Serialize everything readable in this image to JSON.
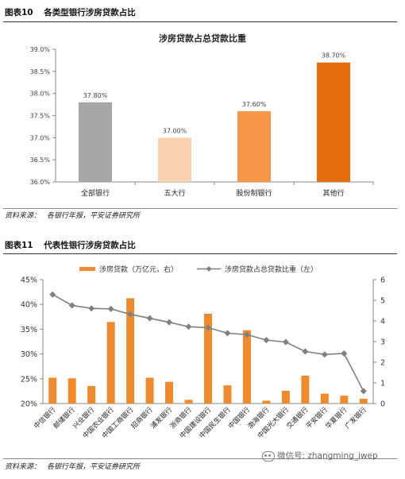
{
  "figure1": {
    "number": "图表10",
    "heading": "各类型银行涉房贷款占比",
    "source_label": "资料来源",
    "source_text": "各银行年报，平安证券研究所"
  },
  "figure2": {
    "number": "图表11",
    "heading": "代表性银行涉房贷款占比",
    "source_label": "资料来源",
    "source_text": "各银行年报，平安证券研究所"
  },
  "watermark": "微信号: zhangming_iwep",
  "colors": {
    "gray_bar": "#A6A6A6",
    "light_orange": "#FAD2B0",
    "mid_orange": "#F79646",
    "dark_orange": "#E46C0A",
    "line_gray": "#808080",
    "bar_orange": "#F08A2E"
  },
  "chart_data": [
    {
      "type": "bar",
      "title": "涉房贷款占总贷款比重",
      "categories": [
        "全部银行",
        "五大行",
        "股份制银行",
        "其他行"
      ],
      "values": [
        37.8,
        37.0,
        37.6,
        38.7
      ],
      "value_labels": [
        "37.80%",
        "37.00%",
        "37.60%",
        "38.70%"
      ],
      "bar_colors": [
        "#A6A6A6",
        "#FAD2B0",
        "#F79646",
        "#E46C0A"
      ],
      "ylim": [
        36.0,
        39.0
      ],
      "yticks": [
        "36.0%",
        "36.5%",
        "37.0%",
        "37.5%",
        "38.0%",
        "38.5%",
        "39.0%"
      ],
      "grid": false
    },
    {
      "type": "bar+line",
      "categories": [
        "中信银行",
        "邮储银行",
        "兴业银行",
        "中国农业银行",
        "中国工商银行",
        "招商银行",
        "浦发银行",
        "浙商银行",
        "中国建设银行",
        "中国民生银行",
        "中国银行",
        "渤海银行",
        "中国光大银行",
        "交通银行",
        "平安银行",
        "华夏银行",
        "广发银行"
      ],
      "series": [
        {
          "name": "涉房贷款（万亿元，右）",
          "kind": "bar",
          "axis": "right",
          "values": [
            1.25,
            1.22,
            0.85,
            3.95,
            5.1,
            1.25,
            1.05,
            0.18,
            4.35,
            0.88,
            3.55,
            0.14,
            0.62,
            1.35,
            0.48,
            0.38,
            0.23
          ]
        },
        {
          "name": "涉房贷款占总贷款比重（左）",
          "kind": "line",
          "axis": "left",
          "values": [
            42.0,
            39.8,
            39.2,
            39.1,
            38.0,
            37.2,
            36.4,
            35.5,
            35.3,
            34.2,
            33.9,
            32.8,
            32.4,
            30.5,
            29.9,
            30.1,
            22.5
          ]
        }
      ],
      "ylim_left": [
        20,
        45
      ],
      "yticks_left": [
        "20%",
        "25%",
        "30%",
        "35%",
        "40%",
        "45%"
      ],
      "ylim_right": [
        0,
        6
      ],
      "yticks_right": [
        "0",
        "1",
        "2",
        "3",
        "4",
        "5",
        "6"
      ],
      "legend_position": "top-center",
      "grid": false
    }
  ]
}
